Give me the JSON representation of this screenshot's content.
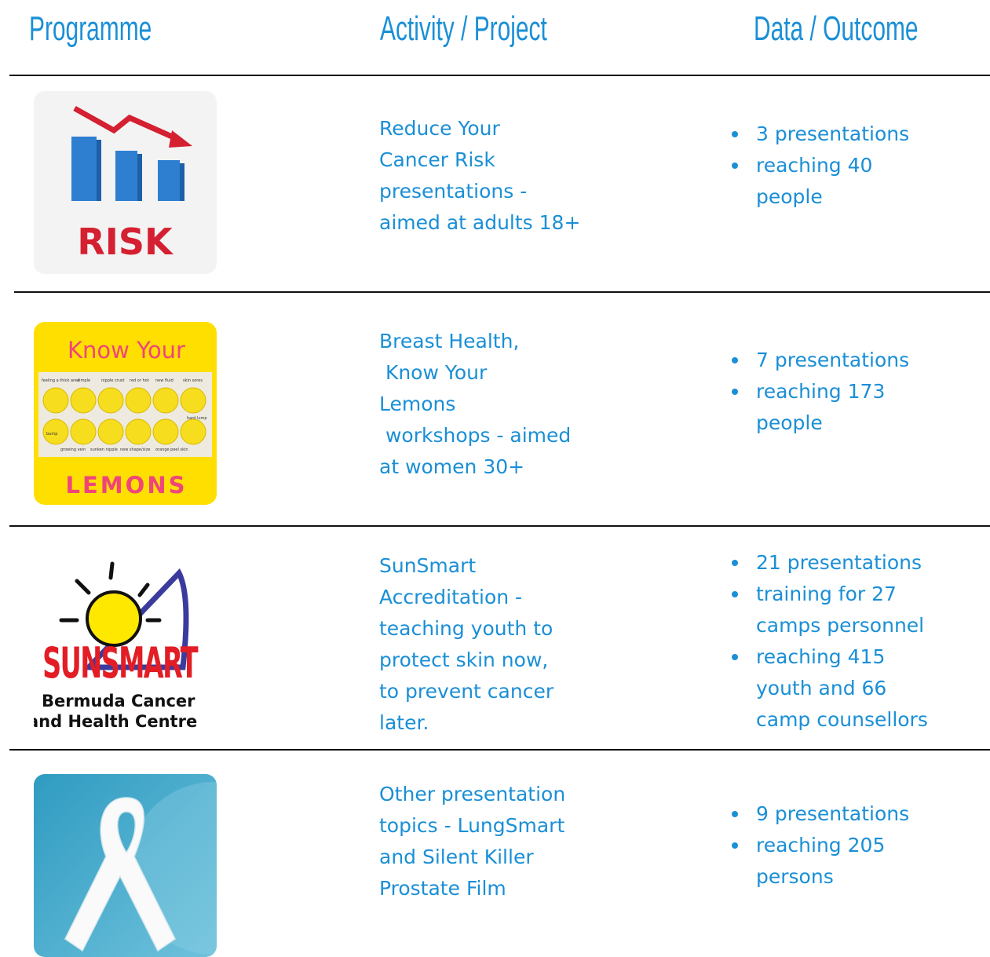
{
  "header": {
    "programme": "Programme",
    "activity": "Activity / Project",
    "outcome": "Data / Outcome"
  },
  "rows": [
    {
      "image": {
        "label": "RISK"
      },
      "activity": [
        "Reduce Your",
        "Cancer Risk",
        "presentations -",
        "aimed at adults 18+"
      ],
      "outcomes": [
        [
          "3 presentations"
        ],
        [
          "reaching 40",
          "people"
        ]
      ]
    },
    {
      "image": {
        "title": "Know Your",
        "labels": [
          "feeling a thick area",
          "dimple",
          "nipple crust",
          "red or hot",
          "new fluid",
          "skin sores",
          "bump",
          "hard lump",
          "growing vein",
          "sunken nipple",
          "new shape/size",
          "orange peel skin"
        ],
        "footer": "LEMONS"
      },
      "activity": [
        "Breast Health,",
        " Know Your",
        "Lemons",
        " workshops - aimed",
        "at women 30+"
      ],
      "outcomes": [
        [
          "7 presentations"
        ],
        [
          "reaching 173",
          "people"
        ]
      ]
    },
    {
      "image": {
        "logo": "SUNSMART",
        "org": [
          "Bermuda Cancer",
          "and Health Centre"
        ]
      },
      "activity": [
        "SunSmart",
        "Accreditation -",
        "teaching youth to",
        "protect skin now,",
        "to prevent cancer",
        "later."
      ],
      "outcomes": [
        [
          "21 presentations"
        ],
        [
          "training for 27",
          "camps personnel"
        ],
        [
          "reaching 415",
          "youth and 66",
          "camp counsellors"
        ]
      ]
    },
    {
      "activity": [
        "Other presentation",
        "topics - LungSmart",
        "and Silent Killer",
        "Prostate Film"
      ],
      "outcomes": [
        [
          "9 presentations"
        ],
        [
          "reaching 205",
          "persons"
        ]
      ]
    }
  ]
}
